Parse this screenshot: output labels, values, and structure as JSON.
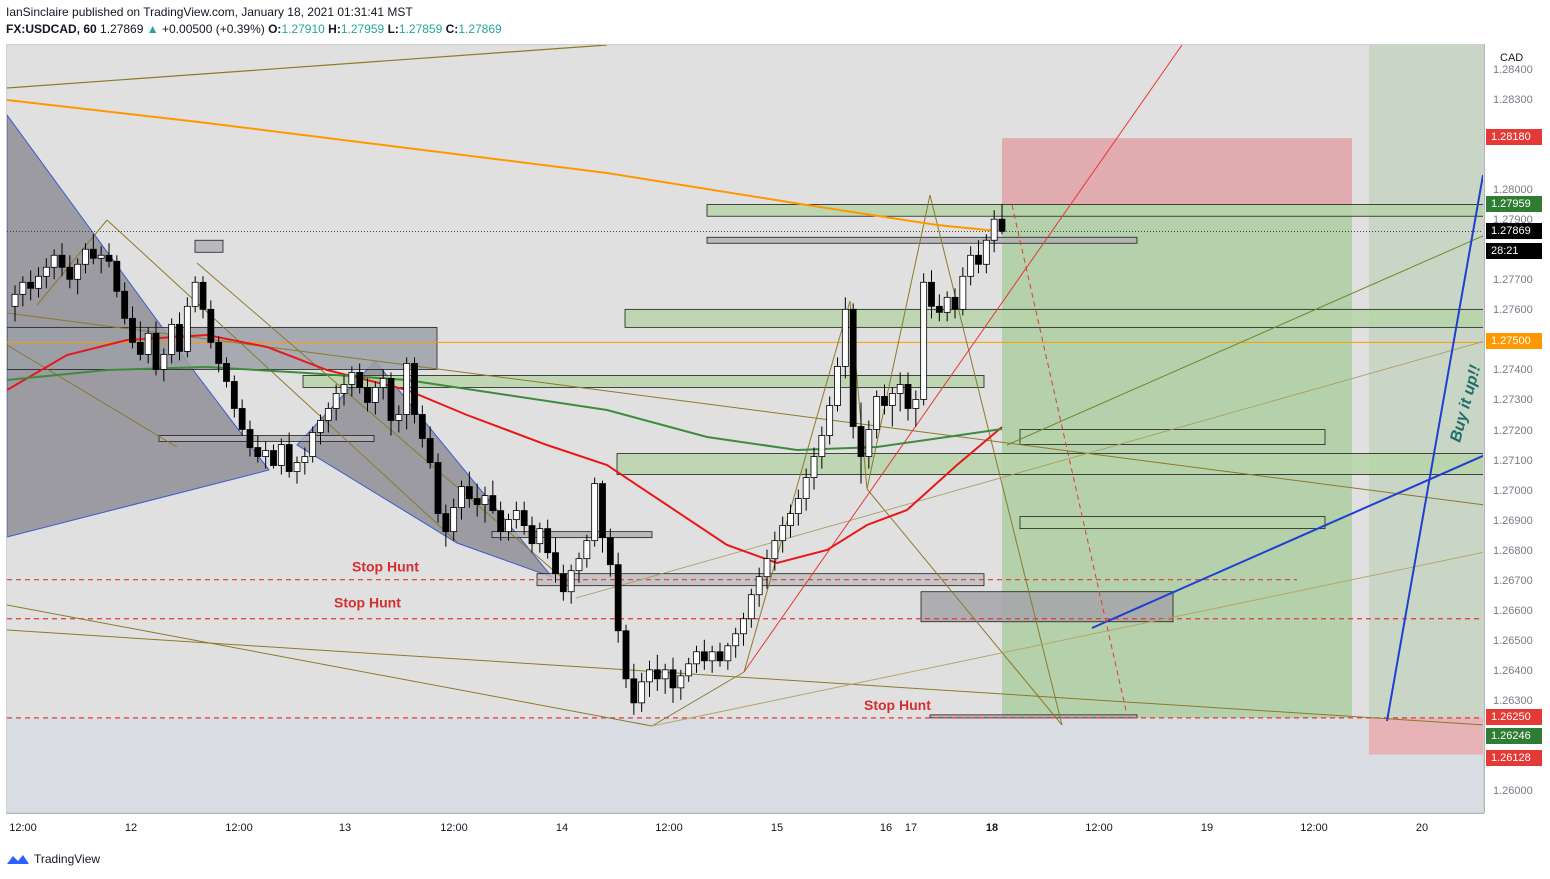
{
  "header": {
    "line1": "IanSinclaire published on TradingView.com, January 18, 2021 01:31:41 MST",
    "symbol": "FX:USDCAD, 60",
    "price": "1.27869",
    "change": "+0.00500 (+0.39%)",
    "o_label": "O:",
    "o": "1.27910",
    "h_label": "H:",
    "h": "1.27959",
    "l_label": "L:",
    "l": "1.27859",
    "c_label": "C:",
    "c": "1.27869"
  },
  "footer": {
    "brand": "TradingView"
  },
  "colors": {
    "up": "#ffffff",
    "down": "#000000",
    "ema_red": "#e8181a",
    "ma_green": "#3c8c3c",
    "orange": "#ff9800",
    "blue": "#1f3fd0",
    "olive": "#8a7a2a"
  },
  "chart_data": {
    "type": "candlestick",
    "currency": "CAD",
    "price_ticks": [
      "1.28400",
      "1.28300",
      "1.28180",
      "1.28000",
      "1.27959",
      "1.27900",
      "1.27869",
      "1.27700",
      "1.27600",
      "1.27500",
      "1.27400",
      "1.27300",
      "1.27200",
      "1.27100",
      "1.27000",
      "1.26900",
      "1.26800",
      "1.26700",
      "1.26600",
      "1.26500",
      "1.26400",
      "1.26300",
      "1.26250",
      "1.26246",
      "1.26128",
      "1.26000"
    ],
    "ylim": [
      1.2593,
      1.2849
    ],
    "time_ticks": [
      "12:00",
      "12",
      "12:00",
      "13",
      "12:00",
      "14",
      "12:00",
      "15",
      "16",
      "17",
      "18",
      "12:00",
      "19",
      "12:00",
      "20"
    ],
    "price_labels": [
      {
        "value": "1.28180",
        "color": "#e53935"
      },
      {
        "value": "1.27959",
        "color": "#2e7d32"
      },
      {
        "value": "1.27869",
        "color": "#000000"
      },
      {
        "value": "28:21",
        "color": "#000000"
      },
      {
        "value": "1.27500",
        "color": "#ff9800"
      },
      {
        "value": "1.26250",
        "color": "#e53935"
      },
      {
        "value": "1.26246",
        "color": "#2e7d32"
      },
      {
        "value": "1.26128",
        "color": "#e53935"
      }
    ],
    "annotations": [
      {
        "text": "Stop Hunt",
        "price": 1.2671
      },
      {
        "text": "Stop Hunt",
        "price": 1.2659
      },
      {
        "text": "Stop Hunt",
        "price": 1.2625
      },
      {
        "text": "Buy it up!!"
      }
    ],
    "candles": [
      [
        1.2762,
        1.2769,
        1.2757,
        1.2766
      ],
      [
        1.2766,
        1.2772,
        1.2762,
        1.277
      ],
      [
        1.277,
        1.2774,
        1.2764,
        1.2768
      ],
      [
        1.2768,
        1.2775,
        1.2765,
        1.2772
      ],
      [
        1.2772,
        1.2778,
        1.2768,
        1.2775
      ],
      [
        1.2775,
        1.2781,
        1.2771,
        1.2779
      ],
      [
        1.2779,
        1.2783,
        1.2772,
        1.2775
      ],
      [
        1.2775,
        1.2779,
        1.2768,
        1.2771
      ],
      [
        1.2771,
        1.2778,
        1.2766,
        1.2776
      ],
      [
        1.2776,
        1.2783,
        1.2773,
        1.2781
      ],
      [
        1.2781,
        1.2786,
        1.2776,
        1.2778
      ],
      [
        1.2778,
        1.2782,
        1.2773,
        1.2779
      ],
      [
        1.2779,
        1.2783,
        1.2775,
        1.2777
      ],
      [
        1.2777,
        1.2779,
        1.2765,
        1.2767
      ],
      [
        1.2767,
        1.277,
        1.2756,
        1.2758
      ],
      [
        1.2758,
        1.2762,
        1.2748,
        1.275
      ],
      [
        1.275,
        1.2757,
        1.2744,
        1.2746
      ],
      [
        1.2746,
        1.2755,
        1.2743,
        1.2753
      ],
      [
        1.2753,
        1.2757,
        1.2739,
        1.2741
      ],
      [
        1.2741,
        1.2748,
        1.2737,
        1.2746
      ],
      [
        1.2746,
        1.2758,
        1.2743,
        1.2756
      ],
      [
        1.2756,
        1.276,
        1.2744,
        1.2747
      ],
      [
        1.2747,
        1.2765,
        1.2745,
        1.2762
      ],
      [
        1.2762,
        1.2772,
        1.276,
        1.277
      ],
      [
        1.277,
        1.2772,
        1.2758,
        1.2761
      ],
      [
        1.2761,
        1.2764,
        1.2748,
        1.275
      ],
      [
        1.275,
        1.2752,
        1.274,
        1.2743
      ],
      [
        1.2743,
        1.2745,
        1.2735,
        1.2737
      ],
      [
        1.2737,
        1.2739,
        1.2725,
        1.2728
      ],
      [
        1.2728,
        1.2731,
        1.2719,
        1.2721
      ],
      [
        1.2721,
        1.2724,
        1.2712,
        1.2715
      ],
      [
        1.2715,
        1.2719,
        1.271,
        1.2712
      ],
      [
        1.2712,
        1.2717,
        1.2708,
        1.2714
      ],
      [
        1.2714,
        1.2716,
        1.2708,
        1.2709
      ],
      [
        1.2709,
        1.2718,
        1.2706,
        1.2716
      ],
      [
        1.2716,
        1.272,
        1.2705,
        1.2707
      ],
      [
        1.2707,
        1.2712,
        1.2703,
        1.271
      ],
      [
        1.271,
        1.2715,
        1.2706,
        1.2712
      ],
      [
        1.2712,
        1.2722,
        1.271,
        1.272
      ],
      [
        1.272,
        1.2726,
        1.2716,
        1.2724
      ],
      [
        1.2724,
        1.273,
        1.272,
        1.2728
      ],
      [
        1.2728,
        1.2736,
        1.2724,
        1.2733
      ],
      [
        1.2733,
        1.2739,
        1.2729,
        1.2736
      ],
      [
        1.2736,
        1.2742,
        1.2732,
        1.274
      ],
      [
        1.274,
        1.2743,
        1.2733,
        1.2735
      ],
      [
        1.2735,
        1.2738,
        1.2727,
        1.273
      ],
      [
        1.273,
        1.2737,
        1.2726,
        1.2735
      ],
      [
        1.2735,
        1.2741,
        1.2731,
        1.2738
      ],
      [
        1.2738,
        1.274,
        1.2719,
        1.2724
      ],
      [
        1.2724,
        1.2729,
        1.272,
        1.2726
      ],
      [
        1.2726,
        1.2745,
        1.2721,
        1.2743
      ],
      [
        1.2743,
        1.2745,
        1.2723,
        1.2726
      ],
      [
        1.2726,
        1.2729,
        1.2715,
        1.2718
      ],
      [
        1.2718,
        1.2722,
        1.2708,
        1.271
      ],
      [
        1.271,
        1.2713,
        1.269,
        1.2693
      ],
      [
        1.2693,
        1.2696,
        1.2682,
        1.2687
      ],
      [
        1.2687,
        1.2698,
        1.2684,
        1.2695
      ],
      [
        1.2695,
        1.2704,
        1.2691,
        1.2702
      ],
      [
        1.2702,
        1.2707,
        1.2695,
        1.2698
      ],
      [
        1.2698,
        1.2703,
        1.2692,
        1.2696
      ],
      [
        1.2696,
        1.2702,
        1.269,
        1.2699
      ],
      [
        1.2699,
        1.2704,
        1.2693,
        1.2694
      ],
      [
        1.2694,
        1.2697,
        1.2684,
        1.2687
      ],
      [
        1.2687,
        1.2693,
        1.2684,
        1.2691
      ],
      [
        1.2691,
        1.2697,
        1.2688,
        1.2694
      ],
      [
        1.2694,
        1.2697,
        1.2686,
        1.2689
      ],
      [
        1.2689,
        1.2692,
        1.268,
        1.2683
      ],
      [
        1.2683,
        1.269,
        1.268,
        1.2688
      ],
      [
        1.2688,
        1.2691,
        1.2678,
        1.268
      ],
      [
        1.268,
        1.2685,
        1.267,
        1.2673
      ],
      [
        1.2673,
        1.2676,
        1.2664,
        1.2667
      ],
      [
        1.2667,
        1.2676,
        1.2663,
        1.2674
      ],
      [
        1.2674,
        1.268,
        1.267,
        1.2678
      ],
      [
        1.2678,
        1.2686,
        1.2675,
        1.2684
      ],
      [
        1.2684,
        1.2705,
        1.2682,
        1.2703
      ],
      [
        1.2703,
        1.2704,
        1.268,
        1.2685
      ],
      [
        1.2685,
        1.2688,
        1.2672,
        1.2676
      ],
      [
        1.2676,
        1.268,
        1.265,
        1.2654
      ],
      [
        1.2654,
        1.2656,
        1.2635,
        1.2638
      ],
      [
        1.2638,
        1.2643,
        1.2626,
        1.263
      ],
      [
        1.263,
        1.264,
        1.2627,
        1.2637
      ],
      [
        1.2637,
        1.2644,
        1.2632,
        1.2641
      ],
      [
        1.2641,
        1.2646,
        1.2634,
        1.2638
      ],
      [
        1.2638,
        1.2643,
        1.2633,
        1.2641
      ],
      [
        1.2641,
        1.2645,
        1.263,
        1.2635
      ],
      [
        1.2635,
        1.2641,
        1.2631,
        1.2639
      ],
      [
        1.2639,
        1.2645,
        1.2637,
        1.2643
      ],
      [
        1.2643,
        1.2649,
        1.264,
        1.2647
      ],
      [
        1.2647,
        1.2651,
        1.2641,
        1.2644
      ],
      [
        1.2644,
        1.2649,
        1.264,
        1.2647
      ],
      [
        1.2647,
        1.265,
        1.2642,
        1.2644
      ],
      [
        1.2644,
        1.265,
        1.2641,
        1.2649
      ],
      [
        1.2649,
        1.2655,
        1.2645,
        1.2653
      ],
      [
        1.2653,
        1.266,
        1.2649,
        1.2658
      ],
      [
        1.2658,
        1.2668,
        1.2655,
        1.2666
      ],
      [
        1.2666,
        1.2675,
        1.2662,
        1.2672
      ],
      [
        1.2672,
        1.2681,
        1.2668,
        1.2678
      ],
      [
        1.2678,
        1.2687,
        1.2674,
        1.2684
      ],
      [
        1.2684,
        1.2692,
        1.268,
        1.2689
      ],
      [
        1.2689,
        1.2696,
        1.2685,
        1.2693
      ],
      [
        1.2693,
        1.2701,
        1.2689,
        1.2698
      ],
      [
        1.2698,
        1.2708,
        1.2694,
        1.2705
      ],
      [
        1.2705,
        1.2715,
        1.2701,
        1.2712
      ],
      [
        1.2712,
        1.2722,
        1.2708,
        1.2719
      ],
      [
        1.2719,
        1.2732,
        1.2716,
        1.2729
      ],
      [
        1.2729,
        1.2745,
        1.2727,
        1.2742
      ],
      [
        1.2742,
        1.2765,
        1.2738,
        1.2761
      ],
      [
        1.2761,
        1.2763,
        1.2718,
        1.2722
      ],
      [
        1.2722,
        1.273,
        1.2703,
        1.2712
      ],
      [
        1.2712,
        1.2724,
        1.2708,
        1.2721
      ],
      [
        1.2721,
        1.2734,
        1.2718,
        1.2732
      ],
      [
        1.2732,
        1.2736,
        1.2726,
        1.2729
      ],
      [
        1.2729,
        1.2735,
        1.2722,
        1.2733
      ],
      [
        1.2733,
        1.274,
        1.2727,
        1.2736
      ],
      [
        1.2736,
        1.274,
        1.2724,
        1.2728
      ],
      [
        1.2728,
        1.2734,
        1.2722,
        1.2731
      ],
      [
        1.2731,
        1.2773,
        1.2729,
        1.277
      ],
      [
        1.277,
        1.2774,
        1.2758,
        1.2762
      ],
      [
        1.2762,
        1.2766,
        1.2757,
        1.276
      ],
      [
        1.276,
        1.2767,
        1.2757,
        1.2765
      ],
      [
        1.2765,
        1.2768,
        1.2758,
        1.2761
      ],
      [
        1.2761,
        1.2775,
        1.2759,
        1.2772
      ],
      [
        1.2772,
        1.2782,
        1.2769,
        1.2779
      ],
      [
        1.2779,
        1.2784,
        1.2773,
        1.2776
      ],
      [
        1.2776,
        1.2786,
        1.2773,
        1.2784
      ],
      [
        1.2784,
        1.2794,
        1.278,
        1.2791
      ],
      [
        1.2791,
        1.2796,
        1.2786,
        1.2787
      ]
    ]
  }
}
